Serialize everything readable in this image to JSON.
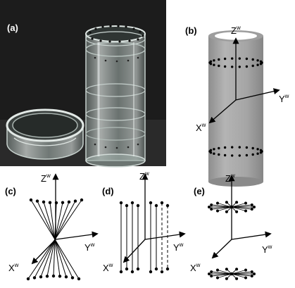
{
  "panels": {
    "a": {
      "label": "(a)"
    },
    "b": {
      "label": "(b)",
      "axes": {
        "z": "Z",
        "y": "Y",
        "x": "X",
        "superscript": "w"
      }
    },
    "c": {
      "label": "(c)",
      "axes": {
        "z": "Z",
        "y": "Y",
        "x": "X",
        "superscript": "w"
      }
    },
    "d": {
      "label": "(d)",
      "axes": {
        "z": "Z",
        "y": "Y",
        "x": "X",
        "superscript": "w"
      }
    },
    "e": {
      "label": "(e)",
      "axes": {
        "z": "Z",
        "y": "Y",
        "x": "X",
        "superscript": "w"
      }
    }
  },
  "colors": {
    "photo_background": "#1a1a1a",
    "cylinder_gray": "#a3a3a3",
    "line": "#000000"
  }
}
